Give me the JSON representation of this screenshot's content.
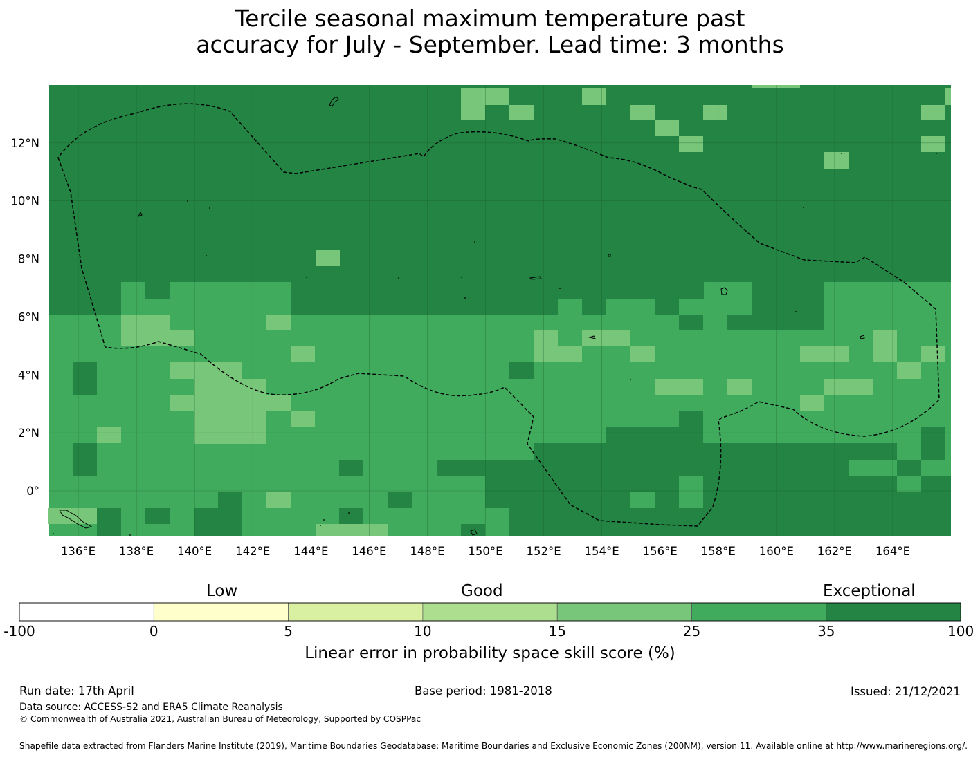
{
  "title": {
    "line1": "Tercile seasonal maximum temperature past",
    "line2": "accuracy for July - September. Lead time: 3 months"
  },
  "map": {
    "lon_ticks": [
      "136°E",
      "138°E",
      "140°E",
      "142°E",
      "144°E",
      "146°E",
      "148°E",
      "150°E",
      "152°E",
      "154°E",
      "156°E",
      "158°E",
      "160°E",
      "162°E",
      "164°E"
    ],
    "lat_ticks": [
      "12°N",
      "10°N",
      "8°N",
      "6°N",
      "4°N",
      "2°N",
      "0°"
    ],
    "lon_range": [
      135.0,
      166.0
    ],
    "lat_range": [
      -1.55,
      14.0
    ],
    "grid": true
  },
  "legend": {
    "categories": [
      {
        "label": "Low"
      },
      {
        "label": "Good"
      },
      {
        "label": "Exceptional"
      }
    ],
    "colors": [
      "#ffffff",
      "#ffffcc",
      "#d9f0a3",
      "#addd8e",
      "#78c679",
      "#41ab5d",
      "#238443"
    ],
    "ticks": [
      "-100",
      "0",
      "5",
      "10",
      "15",
      "25",
      "35",
      "100"
    ],
    "label": "Linear error in probability space skill score (%)"
  },
  "footer": {
    "run_date": "Run date: 17th April",
    "base_period": "Base period: 1981-2018",
    "issued": "Issued: 21/12/2021",
    "data_source": "Data source: ACCESS-S2 and ERA5 Climate Reanalysis",
    "copyright": "© Commonwealth of Australia 2021, Australian Bureau of Meteorology, Supported by COSPPac",
    "shapefile": "Shapefile data extracted from Flanders Marine Institute (2019), Maritime Boundaries Geodatabase: Maritime Boundaries and Exclusive Economic Zones (200NM), version 11. Available online at http://www.marineregions.org/."
  }
}
